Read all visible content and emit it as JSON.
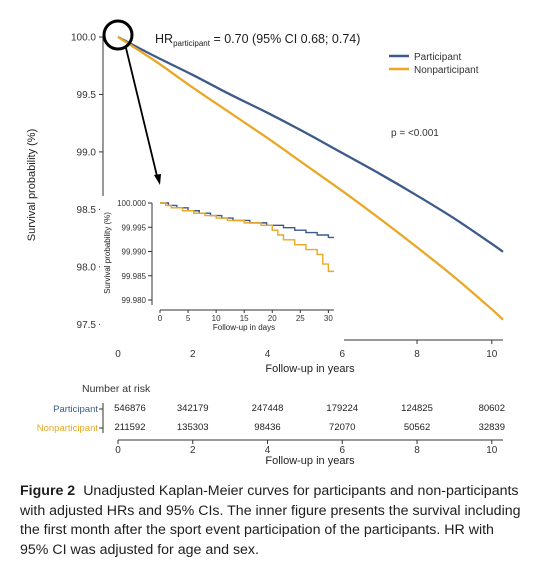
{
  "chart_data": {
    "type": "line",
    "annotation_hr": {
      "prefix": "HR",
      "subscript": "participant",
      "rest": " = 0.70 (95% CI 0.68; 0.74)"
    },
    "annotation_p": "p = <0.001",
    "ylabel": "Survival probability (%)",
    "xlabel": "Follow-up in years",
    "xlim": [
      0,
      10.3
    ],
    "ylim": [
      97.45,
      100.0
    ],
    "xticks": [
      "0",
      "2",
      "4",
      "6",
      "8",
      "10"
    ],
    "yticks": [
      "97.5",
      "98.0",
      "98.5",
      "99.0",
      "99.5",
      "100.0"
    ],
    "legend_position": "top-right",
    "series": [
      {
        "name": "Participant",
        "color": "#3d5a8a",
        "x": [
          0,
          1,
          2,
          3,
          4,
          5,
          6,
          7,
          8,
          9,
          10,
          10.3
        ],
        "y": [
          100.0,
          99.83,
          99.67,
          99.5,
          99.34,
          99.17,
          98.99,
          98.81,
          98.62,
          98.42,
          98.2,
          98.13
        ]
      },
      {
        "name": "Nonparticipant",
        "color": "#e9a825",
        "x": [
          0,
          1,
          2,
          3,
          4,
          5,
          6,
          7,
          8,
          9,
          10,
          10.3
        ],
        "y": [
          100.0,
          99.79,
          99.56,
          99.34,
          99.12,
          98.89,
          98.66,
          98.42,
          98.17,
          97.91,
          97.63,
          97.54
        ]
      }
    ],
    "inset": {
      "ylabel": "Survival probability (%)",
      "xlabel": "Follow-up in days",
      "xlim": [
        0,
        31
      ],
      "ylim": [
        99.98,
        100.0
      ],
      "xticks": [
        "0",
        "5",
        "10",
        "15",
        "20",
        "25",
        "30"
      ],
      "yticks": [
        "99.980",
        "99.985",
        "99.990",
        "99.995",
        "100.000"
      ],
      "series": [
        {
          "name": "Participant",
          "color": "#3d5a8a",
          "x": [
            0,
            1.5,
            1.5,
            3,
            3,
            5,
            5,
            7,
            7,
            9,
            9,
            11,
            11,
            13,
            13,
            16,
            16,
            19,
            19,
            22,
            22,
            24,
            24,
            26,
            26,
            28,
            28,
            30,
            30,
            31
          ],
          "y": [
            100.0,
            100.0,
            99.9995,
            99.9995,
            99.999,
            99.999,
            99.9984,
            99.9984,
            99.9979,
            99.9979,
            99.9974,
            99.9974,
            99.9969,
            99.9969,
            99.9964,
            99.9964,
            99.9959,
            99.9959,
            99.9954,
            99.9954,
            99.9949,
            99.9949,
            99.9944,
            99.9944,
            99.9939,
            99.9939,
            99.9934,
            99.9934,
            99.9929,
            99.9929
          ]
        },
        {
          "name": "Nonparticipant",
          "color": "#e9a825",
          "x": [
            0,
            1,
            1,
            2,
            2,
            4,
            4,
            6,
            6,
            8,
            8,
            10,
            10,
            12,
            12,
            15,
            15,
            18,
            18,
            20,
            20,
            21,
            21,
            22,
            22,
            24,
            24,
            26,
            26,
            28,
            28,
            29,
            29,
            30,
            30,
            31
          ],
          "y": [
            100.0,
            100.0,
            99.9995,
            99.9995,
            99.999,
            99.999,
            99.9984,
            99.9984,
            99.9979,
            99.9979,
            99.9974,
            99.9974,
            99.9969,
            99.9969,
            99.9964,
            99.9964,
            99.9959,
            99.9959,
            99.9954,
            99.9954,
            99.9944,
            99.9944,
            99.9934,
            99.9934,
            99.9924,
            99.9924,
            99.9914,
            99.9914,
            99.9904,
            99.9904,
            99.9894,
            99.9894,
            99.9874,
            99.9874,
            99.9859,
            99.9859
          ]
        }
      ]
    },
    "risk_table": {
      "title": "Number at risk",
      "xlabel": "Follow-up in years",
      "xticks": [
        "0",
        "2",
        "4",
        "6",
        "8",
        "10"
      ],
      "rows": [
        {
          "name": "Participant",
          "color": "#3d5a8a",
          "values": [
            "546876",
            "342179",
            "247448",
            "179224",
            "124825",
            "80602"
          ]
        },
        {
          "name": "Nonparticipant",
          "color": "#e9a825",
          "values": [
            "211592",
            "135303",
            "98436",
            "72070",
            "50562",
            "32839"
          ]
        }
      ]
    }
  },
  "caption": {
    "label": "Figure 2",
    "text": "Unadjusted Kaplan-Meier curves for participants and non-participants with adjusted HRs and 95% CIs. The inner figure presents the survival including the first month after the sport event participation of the participants. HR with 95% CI was adjusted for age and sex."
  }
}
